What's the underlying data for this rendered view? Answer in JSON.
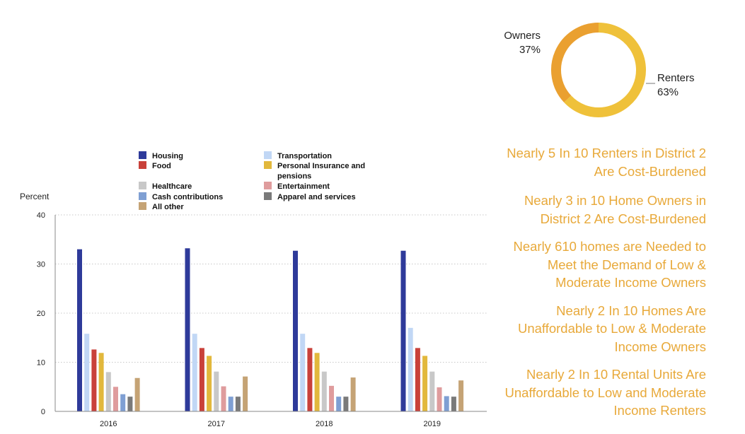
{
  "chart_data": [
    {
      "type": "pie",
      "title": "",
      "slices": [
        {
          "name": "Owners",
          "value": 37,
          "label": "37%",
          "color": "#eaa030"
        },
        {
          "name": "Renters",
          "value": 63,
          "label": "63%",
          "color": "#efc13a"
        }
      ]
    },
    {
      "type": "bar",
      "title": "",
      "ylabel": "Percent",
      "xlabel": "",
      "ylim": [
        0,
        40
      ],
      "yticks": [
        0,
        10,
        20,
        30,
        40
      ],
      "grid": true,
      "categories": [
        "2016",
        "2017",
        "2018",
        "2019"
      ],
      "series": [
        {
          "name": "Housing",
          "color": "#2e3a9a",
          "values": [
            33.0,
            33.2,
            32.7,
            32.7
          ]
        },
        {
          "name": "Transportation",
          "color": "#c1d7f5",
          "values": [
            15.8,
            15.8,
            15.8,
            17.0
          ]
        },
        {
          "name": "Food",
          "color": "#c9413a",
          "values": [
            12.6,
            12.9,
            12.9,
            12.9
          ]
        },
        {
          "name": "Personal Insurance and pensions",
          "color": "#e2b83c",
          "values": [
            11.9,
            11.3,
            11.9,
            11.3
          ]
        },
        {
          "name": "Healthcare",
          "color": "#c8c8c8",
          "values": [
            8.0,
            8.1,
            8.1,
            8.1
          ]
        },
        {
          "name": "Entertainment",
          "color": "#df9c9d",
          "values": [
            5.0,
            5.1,
            5.2,
            4.9
          ]
        },
        {
          "name": "Cash contributions",
          "color": "#7f9fd3",
          "values": [
            3.5,
            3.0,
            3.0,
            3.1
          ]
        },
        {
          "name": "Apparel and services",
          "color": "#7a7a7a",
          "values": [
            3.0,
            3.0,
            3.0,
            3.0
          ]
        },
        {
          "name": "All other",
          "color": "#c5a375",
          "values": [
            6.8,
            7.1,
            6.9,
            6.3
          ]
        }
      ],
      "legend_order": [
        [
          "Housing",
          "Transportation"
        ],
        [
          "Food",
          "Personal Insurance and pensions"
        ],
        [
          "Healthcare",
          "Entertainment"
        ],
        [
          "Cash contributions",
          "Apparel and services"
        ],
        [
          "All other",
          null
        ]
      ]
    }
  ],
  "callouts": [
    "Nearly 5 In 10 Renters in District 2 Are Cost-Burdened",
    "Nearly 3 in 10 Home Owners in District 2 Are Cost-Burdened",
    "Nearly 610 homes are Needed to Meet the Demand of Low & Moderate Income Owners",
    "Nearly 2 In 10 Homes Are Unaffordable to Low & Moderate Income Owners",
    "Nearly 2 In 10 Rental Units Are Unaffordable to Low and Moderate Income Renters"
  ],
  "colors": {
    "callout_text": "#e8a93a",
    "grid": "#c8c8c8",
    "axis": "#888888"
  }
}
